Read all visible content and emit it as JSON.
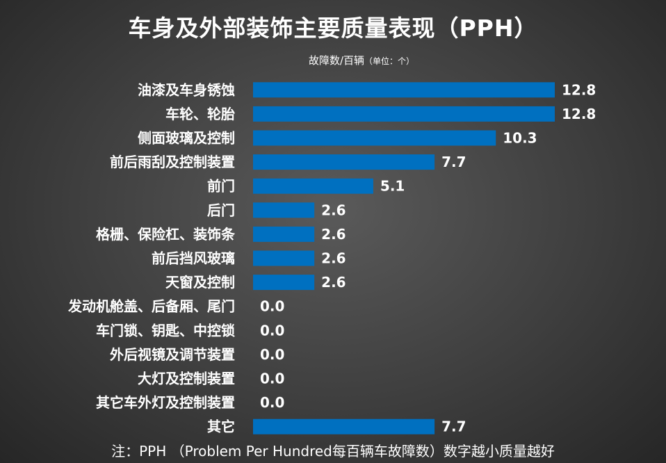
{
  "chart_data": {
    "type": "bar",
    "orientation": "horizontal",
    "title": "车身及外部装饰主要质量表现（PPH）",
    "subtitle": "故障数/百辆",
    "subtitle_unit": "（单位：个）",
    "categories": [
      "油漆及车身锈蚀",
      "车轮、轮胎",
      "侧面玻璃及控制",
      "前后雨刮及控制装置",
      "前门",
      "后门",
      "格栅、保险杠、装饰条",
      "前后挡风玻璃",
      "天窗及控制",
      "发动机舱盖、后备厢、尾门",
      "车门锁、钥匙、中控锁",
      "外后视镜及调节装置",
      "大灯及控制装置",
      "其它车外灯及控制装置",
      "其它"
    ],
    "values": [
      12.8,
      12.8,
      10.3,
      7.7,
      5.1,
      2.6,
      2.6,
      2.6,
      2.6,
      0.0,
      0.0,
      0.0,
      0.0,
      0.0,
      7.7
    ],
    "value_labels": [
      "12.8",
      "12.8",
      "10.3",
      "7.7",
      "5.1",
      "2.6",
      "2.6",
      "2.6",
      "2.6",
      "0.0",
      "0.0",
      "0.0",
      "0.0",
      "0.0",
      "7.7"
    ],
    "xlim": [
      0,
      12.8
    ],
    "grid": false,
    "legend": "none",
    "bar_color": "#0070C0",
    "footnote": "注：PPH （Problem Per Hundred每百辆车故障数）数字越小质量越好"
  }
}
